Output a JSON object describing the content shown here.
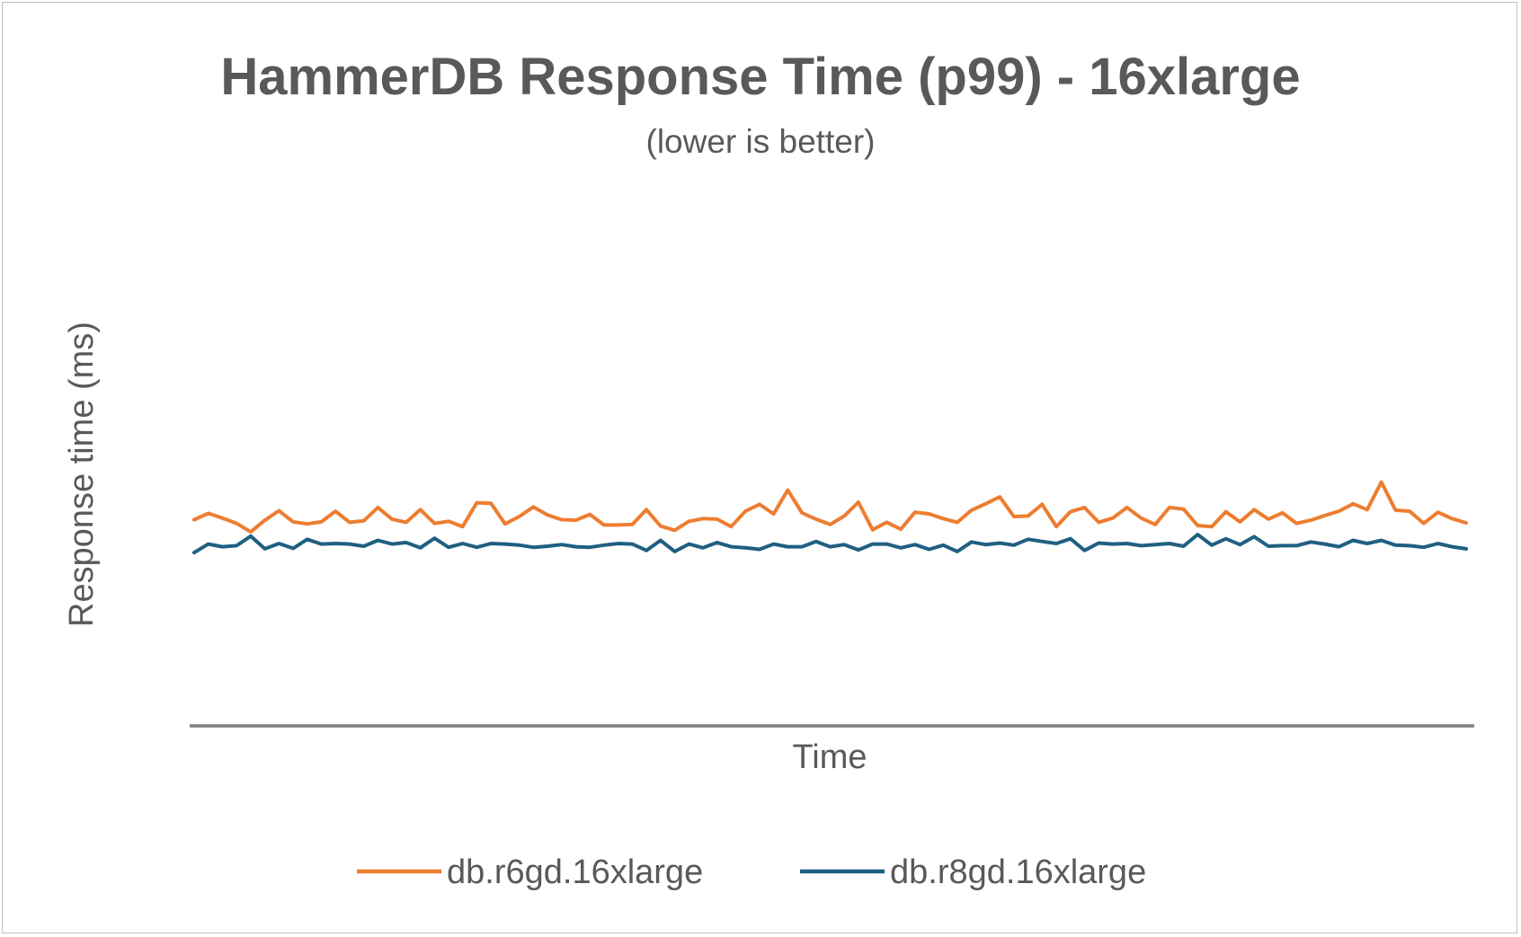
{
  "chart_data": {
    "type": "line",
    "title": "HammerDB Response Time (p99) - 16xlarge",
    "subtitle": "(lower is better)",
    "xlabel": "Time",
    "ylabel": "Response time (ms)",
    "ylim": [
      0,
      100
    ],
    "grid": false,
    "legend": "bottom",
    "series": [
      {
        "name": "db.r6gd.16xlarge",
        "color": "#ED7D31",
        "values": [
          38.9,
          40.1,
          39.2,
          38.2,
          36.6,
          38.8,
          40.6,
          38.5,
          38.1,
          38.5,
          40.5,
          38.4,
          38.7,
          41.2,
          39.0,
          38.4,
          40.8,
          38.2,
          38.6,
          37.6,
          42.1,
          42.0,
          38.1,
          39.5,
          41.3,
          39.8,
          38.9,
          38.8,
          39.9,
          37.9,
          37.9,
          38.0,
          40.8,
          37.7,
          36.9,
          38.6,
          39.1,
          39.0,
          37.6,
          40.5,
          41.8,
          40.0,
          44.5,
          40.2,
          39.0,
          38.0,
          39.6,
          42.2,
          37.0,
          38.4,
          37.1,
          40.3,
          40.0,
          39.1,
          38.4,
          40.7,
          41.9,
          43.2,
          39.5,
          39.6,
          41.8,
          37.6,
          40.4,
          41.2,
          38.4,
          39.2,
          41.2,
          39.2,
          38.0,
          41.2,
          40.9,
          37.8,
          37.6,
          40.4,
          38.5,
          40.8,
          39.0,
          40.2,
          38.2,
          38.8,
          39.7,
          40.5,
          41.9,
          40.8,
          46.0,
          40.7,
          40.5,
          38.2,
          40.3,
          39.1,
          38.3
        ]
      },
      {
        "name": "db.r8gd.16xlarge",
        "color": "#1F5F82",
        "values": [
          32.7,
          34.3,
          33.8,
          34.0,
          35.8,
          33.4,
          34.4,
          33.5,
          35.2,
          34.3,
          34.4,
          34.3,
          33.9,
          35.0,
          34.3,
          34.6,
          33.6,
          35.4,
          33.7,
          34.4,
          33.7,
          34.4,
          34.3,
          34.1,
          33.7,
          33.9,
          34.2,
          33.8,
          33.7,
          34.1,
          34.4,
          34.3,
          33.1,
          35.0,
          32.9,
          34.3,
          33.6,
          34.6,
          33.8,
          33.6,
          33.3,
          34.3,
          33.8,
          33.8,
          34.8,
          33.8,
          34.2,
          33.2,
          34.3,
          34.3,
          33.6,
          34.2,
          33.3,
          34.1,
          32.9,
          34.7,
          34.2,
          34.5,
          34.1,
          35.2,
          34.8,
          34.4,
          35.3,
          33.1,
          34.5,
          34.3,
          34.4,
          34.0,
          34.2,
          34.4,
          33.9,
          36.1,
          34.1,
          35.3,
          34.2,
          35.7,
          33.9,
          34.0,
          34.0,
          34.7,
          34.3,
          33.8,
          35.0,
          34.4,
          35.0,
          34.1,
          34.0,
          33.7,
          34.4,
          33.8,
          33.4
        ]
      }
    ]
  }
}
